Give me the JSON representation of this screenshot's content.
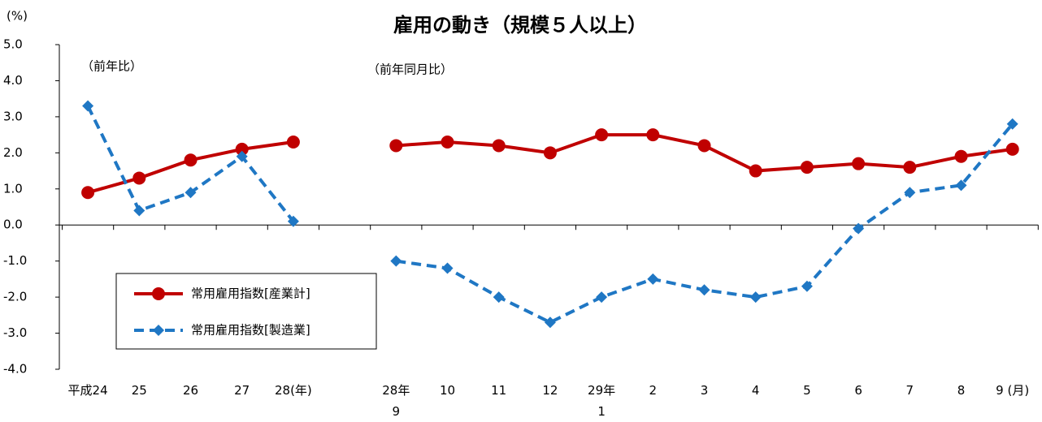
{
  "chart_data": {
    "type": "line",
    "title": "雇用の動き（規模５人以上）",
    "y_unit": "(%)",
    "annotations": [
      "（前年比）",
      "（前年同月比）"
    ],
    "categories": [
      "平成24",
      "25",
      "26",
      "27",
      "28(年)",
      null,
      "28年\n9",
      "10",
      "11",
      "12",
      "29年\n1",
      "2",
      "3",
      "4",
      "5",
      "6",
      "7",
      "8",
      "9 (月)"
    ],
    "series": [
      {
        "name": "常用雇用指数[産業計]",
        "color": "#c00000",
        "marker": "circle",
        "values": [
          0.9,
          1.3,
          1.8,
          2.1,
          2.3,
          null,
          2.2,
          2.3,
          2.2,
          2.0,
          2.5,
          2.5,
          2.2,
          1.5,
          1.6,
          1.7,
          1.6,
          1.9,
          2.1
        ]
      },
      {
        "name": "常用雇用指数[製造業]",
        "color": "#1f77c4",
        "marker": "diamond",
        "dashed": true,
        "values": [
          3.3,
          0.4,
          0.9,
          1.9,
          0.1,
          null,
          -1.0,
          -1.2,
          -2.0,
          -2.7,
          -2.0,
          -1.5,
          -1.8,
          -2.0,
          -1.7,
          -0.1,
          0.9,
          1.1,
          2.8
        ]
      }
    ],
    "ylim": [
      -4,
      5
    ],
    "yticks": [
      {
        "value": 5,
        "label": "5.0"
      },
      {
        "value": 4,
        "label": "4.0"
      },
      {
        "value": 3,
        "label": "3.0"
      },
      {
        "value": 2,
        "label": "2.0"
      },
      {
        "value": 1,
        "label": "1.0"
      },
      {
        "value": 0,
        "label": "0.0"
      },
      {
        "value": -1,
        "label": "-1.0"
      },
      {
        "value": -2,
        "label": "-2.0"
      },
      {
        "value": -3,
        "label": "-3.0"
      },
      {
        "value": -4,
        "label": "-4.0"
      }
    ]
  }
}
